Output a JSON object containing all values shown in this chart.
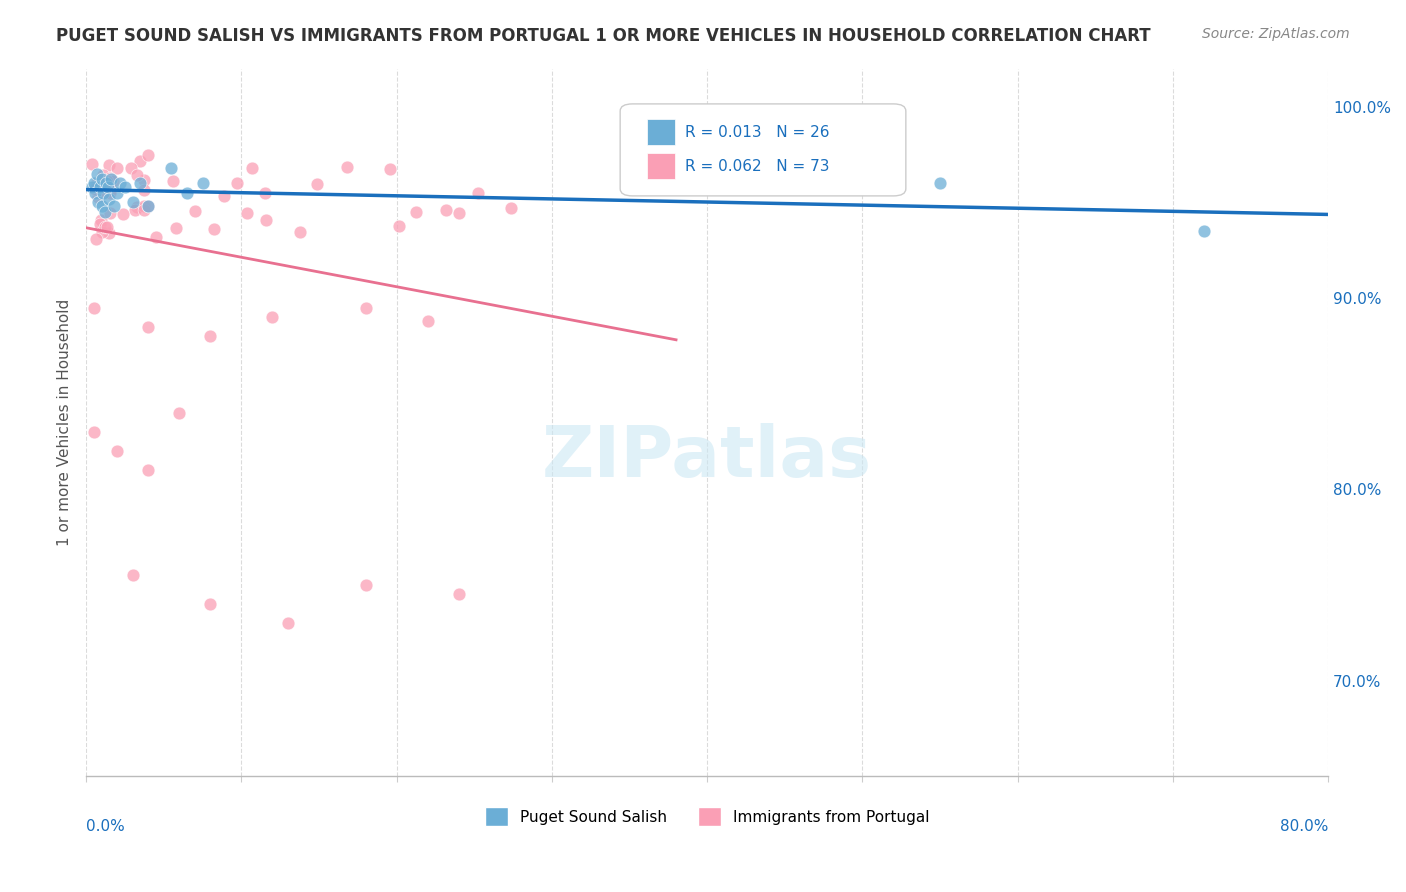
{
  "title": "PUGET SOUND SALISH VS IMMIGRANTS FROM PORTUGAL 1 OR MORE VEHICLES IN HOUSEHOLD CORRELATION CHART",
  "source": "Source: ZipAtlas.com",
  "ylabel": "1 or more Vehicles in Household",
  "R_blue": 0.013,
  "N_blue": 26,
  "R_pink": 0.062,
  "N_pink": 73,
  "watermark": "ZIPatlas",
  "xlim": [
    0.0,
    0.8
  ],
  "ylim": [
    0.65,
    1.02
  ],
  "blue_color": "#6baed6",
  "pink_color": "#fa9fb5",
  "trendline_blue_color": "#1a6fbd",
  "trendline_pink_color": "#e87090",
  "trendline_dash_color": "#a0a0a0",
  "background_color": "#ffffff",
  "grid_color": "#d8d8d8",
  "text_color_blue": "#1a6fbd",
  "title_color": "#333333",
  "yticks": [
    0.7,
    0.8,
    0.9,
    1.0
  ],
  "ytick_labels": [
    "70.0%",
    "80.0%",
    "90.0%",
    "100.0%"
  ],
  "legend_bottom_labels": [
    "Puget Sound Salish",
    "Immigrants from Portugal"
  ]
}
